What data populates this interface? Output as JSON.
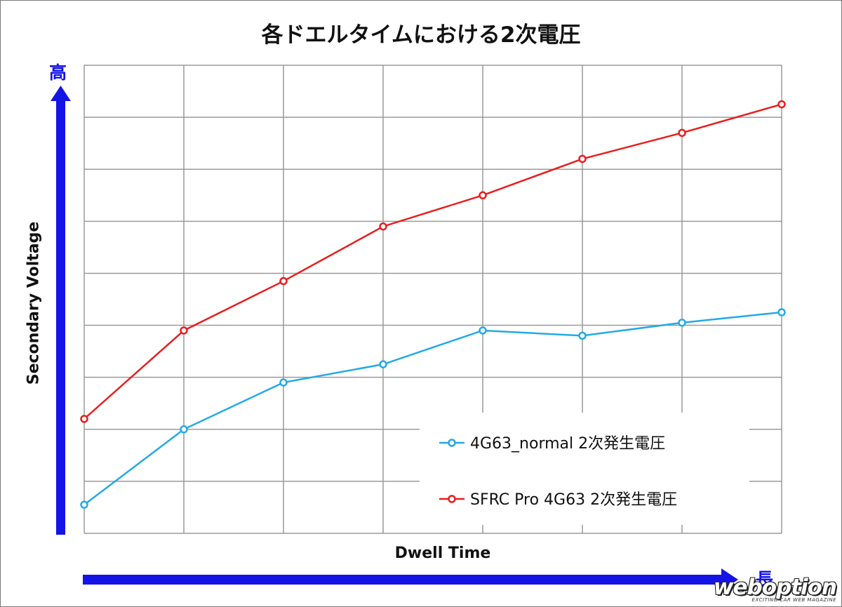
{
  "chart_data": {
    "type": "line",
    "title": "各ドエルタイムにおける2次電圧",
    "xlabel": "Dwell Time",
    "ylabel": "Secondary Voltage",
    "x": [
      1,
      2,
      3,
      4,
      5,
      6,
      7,
      8
    ],
    "xlim": [
      1,
      8
    ],
    "ylim": [
      0,
      9
    ],
    "grid": true,
    "legend_position": "bottom-right",
    "axis_direction_labels": {
      "y_high": "高",
      "x_long": "長"
    },
    "series": [
      {
        "name": "4G63_normal 2次発生電圧",
        "color": "#22aae6",
        "values": [
          0.55,
          2.0,
          2.9,
          3.25,
          3.9,
          3.8,
          4.05,
          4.25
        ]
      },
      {
        "name": "SFRC Pro 4G63 2次発生電圧",
        "color": "#e81e1e",
        "values": [
          2.2,
          3.9,
          4.85,
          5.9,
          6.5,
          7.2,
          7.7,
          8.25
        ]
      }
    ]
  },
  "colors": {
    "arrow": "#1414e6",
    "grid": "#9a9a9a"
  },
  "watermark": {
    "logo": "weboption",
    "tagline": "EXCITING CAR WEB MAGAZINE"
  }
}
